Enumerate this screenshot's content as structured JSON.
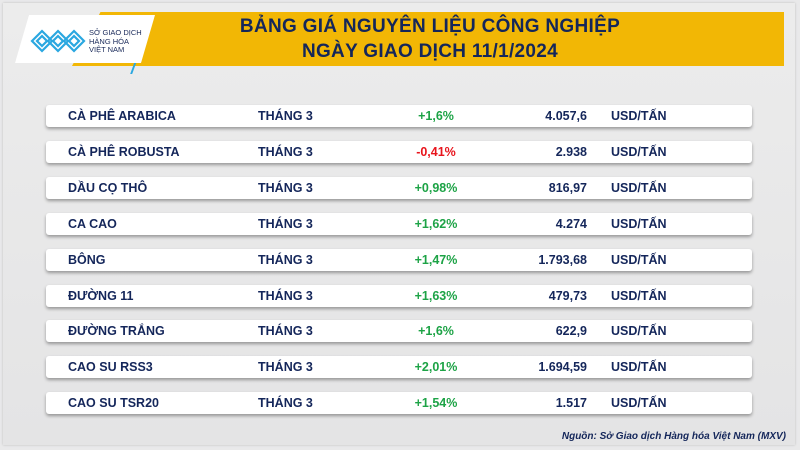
{
  "header": {
    "title_line1": "BẢNG GIÁ NGUYÊN LIỆU CÔNG NGHIỆP",
    "title_line2": "NGÀY GIAO DỊCH 11/1/2024",
    "logo_text": [
      "SỞ GIAO DỊCH",
      "HÀNG HÓA",
      "VIỆT NAM"
    ]
  },
  "colors": {
    "banner": "#f2b705",
    "text": "#14265a",
    "up": "#1da346",
    "down": "#e8141c",
    "logo": "#2aa7e0"
  },
  "rows": [
    {
      "name": "CÀ PHÊ ARABICA",
      "month": "THÁNG 3",
      "change": "+1,6%",
      "dir": "up",
      "price": "4.057,6",
      "unit": "USD/TẤN"
    },
    {
      "name": "CÀ PHÊ ROBUSTA",
      "month": "THÁNG 3",
      "change": "-0,41%",
      "dir": "down",
      "price": "2.938",
      "unit": "USD/TẤN"
    },
    {
      "name": "DẦU CỌ THÔ",
      "month": "THÁNG 3",
      "change": "+0,98%",
      "dir": "up",
      "price": "816,97",
      "unit": "USD/TẤN"
    },
    {
      "name": "CA CAO",
      "month": "THÁNG 3",
      "change": "+1,62%",
      "dir": "up",
      "price": "4.274",
      "unit": "USD/TẤN"
    },
    {
      "name": "BÔNG",
      "month": "THÁNG 3",
      "change": "+1,47%",
      "dir": "up",
      "price": "1.793,68",
      "unit": "USD/TẤN"
    },
    {
      "name": "ĐƯỜNG 11",
      "month": "THÁNG 3",
      "change": "+1,63%",
      "dir": "up",
      "price": "479,73",
      "unit": "USD/TẤN"
    },
    {
      "name": "ĐƯỜNG TRẮNG",
      "month": "THÁNG 3",
      "change": "+1,6%",
      "dir": "up",
      "price": "622,9",
      "unit": "USD/TẤN"
    },
    {
      "name": "CAO SU RSS3",
      "month": "THÁNG 3",
      "change": "+2,01%",
      "dir": "up",
      "price": "1.694,59",
      "unit": "USD/TẤN"
    },
    {
      "name": "CAO SU TSR20",
      "month": "THÁNG 3",
      "change": "+1,54%",
      "dir": "up",
      "price": "1.517",
      "unit": "USD/TẤN"
    }
  ],
  "footer": {
    "source": "Nguồn: Sở Giao dịch Hàng hóa Việt Nam (MXV)"
  }
}
